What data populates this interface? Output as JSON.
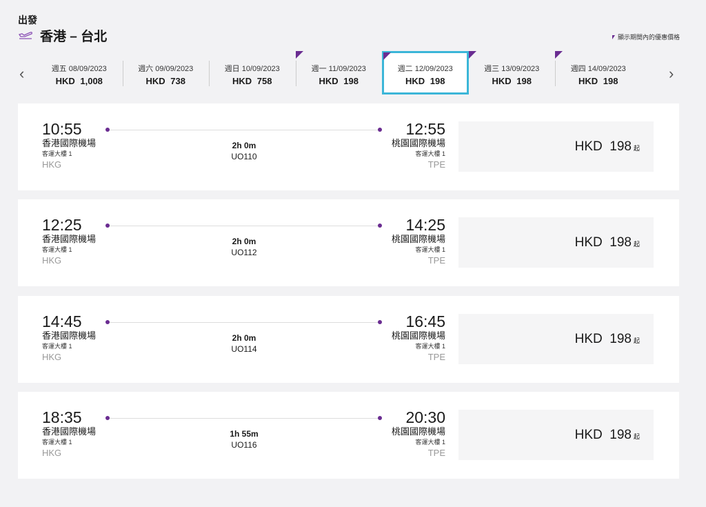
{
  "header": {
    "label": "出發",
    "route": "香港 – 台北",
    "legend": "顯示期間內的優惠價格"
  },
  "colors": {
    "accent": "#6a2c91",
    "selected": "#3bb6d8"
  },
  "dates": [
    {
      "date": "週五 08/09/2023",
      "price": "HKD 1,008",
      "flag": false,
      "selected": false
    },
    {
      "date": "週六 09/09/2023",
      "price": "HKD 738",
      "flag": false,
      "selected": false
    },
    {
      "date": "週日 10/09/2023",
      "price": "HKD 758",
      "flag": false,
      "selected": false
    },
    {
      "date": "週一 11/09/2023",
      "price": "HKD 198",
      "flag": true,
      "selected": false
    },
    {
      "date": "週二 12/09/2023",
      "price": "HKD 198",
      "flag": true,
      "selected": true
    },
    {
      "date": "週三 13/09/2023",
      "price": "HKD 198",
      "flag": true,
      "selected": false
    },
    {
      "date": "週四 14/09/2023",
      "price": "HKD 198",
      "flag": true,
      "selected": false
    }
  ],
  "flights": [
    {
      "dep_time": "10:55",
      "dep_airport": "香港國際機場",
      "dep_terminal": "客運大樓 1",
      "dep_code": "HKG",
      "arr_time": "12:55",
      "arr_airport": "桃園國際機場",
      "arr_terminal": "客運大樓 1",
      "arr_code": "TPE",
      "duration": "2h 0m",
      "flight_no": "UO110",
      "price": "HKD  198",
      "from": "起"
    },
    {
      "dep_time": "12:25",
      "dep_airport": "香港國際機場",
      "dep_terminal": "客運大樓 1",
      "dep_code": "HKG",
      "arr_time": "14:25",
      "arr_airport": "桃園國際機場",
      "arr_terminal": "客運大樓 1",
      "arr_code": "TPE",
      "duration": "2h 0m",
      "flight_no": "UO112",
      "price": "HKD  198",
      "from": "起"
    },
    {
      "dep_time": "14:45",
      "dep_airport": "香港國際機場",
      "dep_terminal": "客運大樓 1",
      "dep_code": "HKG",
      "arr_time": "16:45",
      "arr_airport": "桃園國際機場",
      "arr_terminal": "客運大樓 1",
      "arr_code": "TPE",
      "duration": "2h 0m",
      "flight_no": "UO114",
      "price": "HKD  198",
      "from": "起"
    },
    {
      "dep_time": "18:35",
      "dep_airport": "香港國際機場",
      "dep_terminal": "客運大樓 1",
      "dep_code": "HKG",
      "arr_time": "20:30",
      "arr_airport": "桃園國際機場",
      "arr_terminal": "客運大樓 1",
      "arr_code": "TPE",
      "duration": "1h 55m",
      "flight_no": "UO116",
      "price": "HKD  198",
      "from": "起"
    }
  ]
}
